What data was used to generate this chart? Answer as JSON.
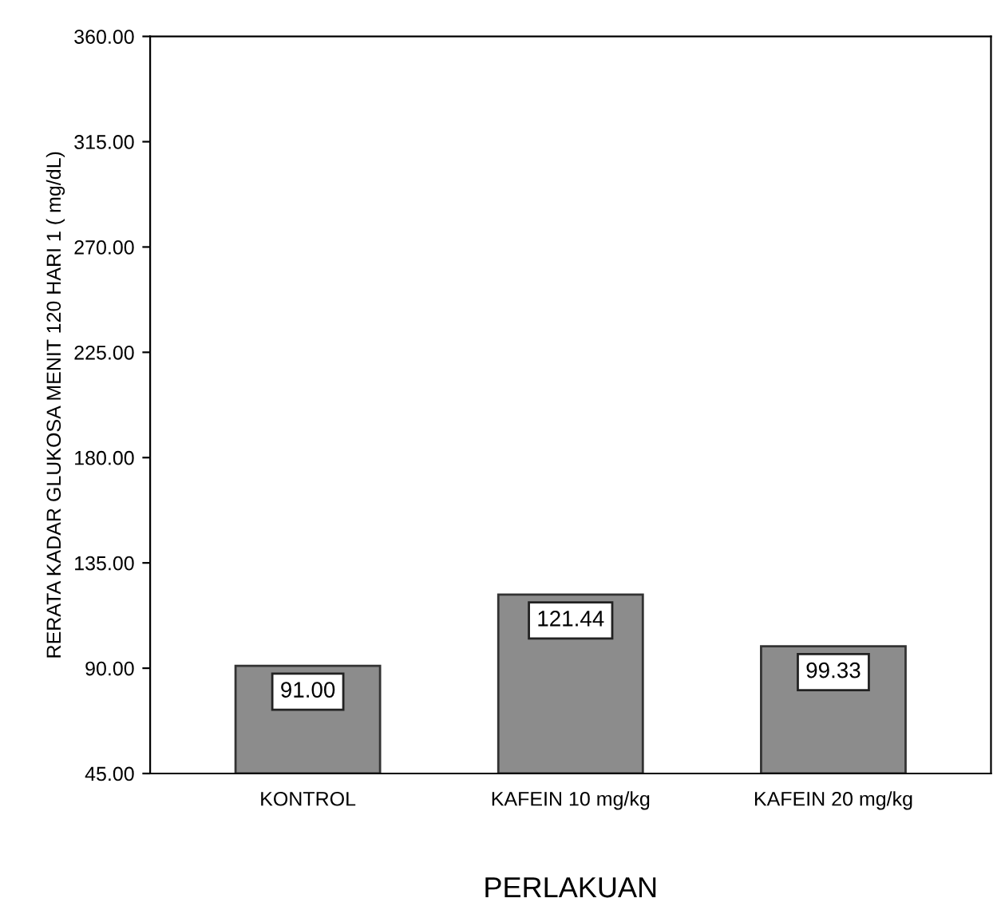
{
  "chart_data": {
    "type": "bar",
    "xlabel": "PERLAKUAN",
    "ylabel": "RERATA KADAR GLUKOSA MENIT 120 HARI 1 ( mg/dL)",
    "categories": [
      "KONTROL",
      "KAFEIN 10 mg/kg",
      "KAFEIN 20 mg/kg"
    ],
    "values": [
      91.0,
      121.44,
      99.33
    ],
    "color": "#8c8c8c",
    "value_labels": [
      "91.00",
      "121.44",
      "99.33"
    ],
    "ylim": [
      45,
      360
    ],
    "yticks": [
      {
        "value": 45,
        "label": "45.00"
      },
      {
        "value": 90,
        "label": "90.00"
      },
      {
        "value": 135,
        "label": "135.00"
      },
      {
        "value": 180,
        "label": "180.00"
      },
      {
        "value": 225,
        "label": "225.00"
      },
      {
        "value": 270,
        "label": "270.00"
      },
      {
        "value": 315,
        "label": "315.00"
      },
      {
        "value": 360,
        "label": "360.00"
      }
    ],
    "grid": false
  }
}
